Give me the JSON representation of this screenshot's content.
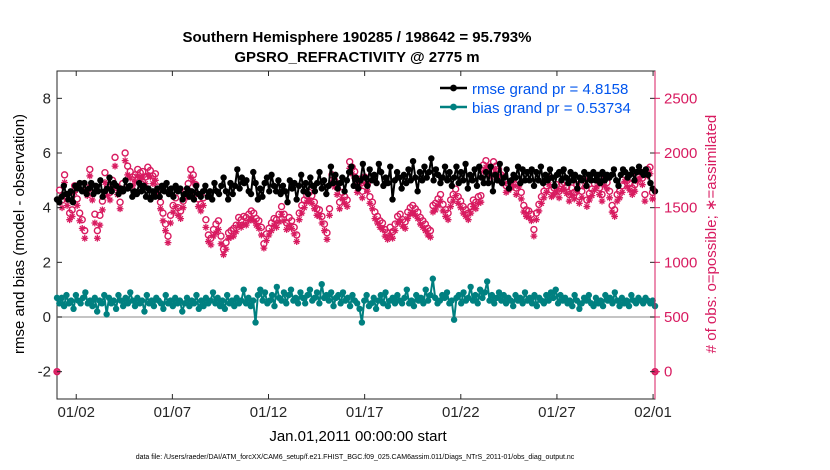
{
  "chart_data": {
    "type": "line",
    "title": "Southern Hemisphere 190285 / 198642 = 95.793%",
    "subtitle": "GPSRO_REFRACTIVITY @ 2775 m",
    "xlabel": "Jan.01,2011 00:00:00 start",
    "ylabel_left": "rmse and bias (model - observation)",
    "ylabel_right": "# of obs: o=possible; ∗=assimilated",
    "footer": "data file: /Users/raeder/DAI/ATM_forcXX/CAM6_setup/f.e21.FHIST_BGC.f09_025.CAM6assim.011/Diags_NTrS_2011-01/obs_diag_output.nc",
    "x_ticks": [
      "01/02",
      "01/07",
      "01/12",
      "01/17",
      "01/22",
      "01/27",
      "02/01"
    ],
    "x_tick_days": [
      1,
      6,
      11,
      16,
      21,
      26,
      31
    ],
    "xlim_days": [
      0,
      31.1
    ],
    "ylim_left": [
      -3,
      9
    ],
    "y_ticks_left": [
      "-2",
      "0",
      "2",
      "4",
      "6",
      "8"
    ],
    "y_tick_values_left": [
      -2,
      0,
      2,
      4,
      6,
      8
    ],
    "ylim_right": [
      -250,
      2750
    ],
    "y_ticks_right": [
      "0",
      "500",
      "1000",
      "1500",
      "2000",
      "2500"
    ],
    "y_tick_values_right": [
      0,
      500,
      1000,
      1500,
      2000,
      2500
    ],
    "grid": false,
    "legend_position": "top-right",
    "colors": {
      "rmse": "#000000",
      "bias": "#008080",
      "obs": "#d81b60",
      "legend_text": "#0055ee",
      "zero_line": "#b0b0b0"
    },
    "series": [
      {
        "name": "rmse grand pr = 4.8158",
        "legend_label": "rmse grand pr = 4.8158",
        "axis": "left",
        "values": [
          4.3,
          4.2,
          4.4,
          4.8,
          4.5,
          4.3,
          4.6,
          4.2,
          4.8,
          4.7,
          4.9,
          4.6,
          4.9,
          4.5,
          4.7,
          4.9,
          4.5,
          4.8,
          4.6,
          5.0,
          4.4,
          4.6,
          4.7,
          5.1,
          4.6,
          4.9,
          4.8,
          4.5,
          4.7,
          4.6,
          5.0,
          4.7,
          4.8,
          4.4,
          4.6,
          4.5,
          4.9,
          4.6,
          4.8,
          4.4,
          4.7,
          4.3,
          4.6,
          4.4,
          4.7,
          4.4,
          4.8,
          4.6,
          4.9,
          4.5,
          4.7,
          4.4,
          4.8,
          4.6,
          4.7,
          4.3,
          4.5,
          4.7,
          4.4,
          4.6,
          4.3,
          4.8,
          4.5,
          4.4,
          4.6,
          4.8,
          4.4,
          4.6,
          4.3,
          4.9,
          4.6,
          4.5,
          4.8,
          5.1,
          4.6,
          4.3,
          4.9,
          4.5,
          4.8,
          5.4,
          4.7,
          5.1,
          4.9,
          5.0,
          4.6,
          4.5,
          5.3,
          4.9,
          4.3,
          4.7,
          4.4,
          4.9,
          5.1,
          4.6,
          5.2,
          4.8,
          4.6,
          5.0,
          4.5,
          4.8,
          4.6,
          4.2,
          5.0,
          4.7,
          4.9,
          4.3,
          4.8,
          5.2,
          4.6,
          4.9,
          4.5,
          5.1,
          4.8,
          4.6,
          4.9,
          5.3,
          4.7,
          5.0,
          4.5,
          4.8,
          5.5,
          4.9,
          5.2,
          4.7,
          4.9,
          5.1,
          4.6,
          5.0,
          5.3,
          5.5,
          4.8,
          5.1,
          4.7,
          5.0,
          5.6,
          5.1,
          4.8,
          5.4,
          5.0,
          5.2,
          4.9,
          5.6,
          5.3,
          4.8,
          5.1,
          4.9,
          5.5,
          4.3,
          5.0,
          5.3,
          5.1,
          4.7,
          5.2,
          4.9,
          5.4,
          5.0,
          5.7,
          5.1,
          4.6,
          5.3,
          5.0,
          5.5,
          5.1,
          5.3,
          5.8,
          5.0,
          5.4,
          5.2,
          4.9,
          5.1,
          5.5,
          5.0,
          5.3,
          4.8,
          5.1,
          5.5,
          4.9,
          5.3,
          5.0,
          5.6,
          4.7,
          5.2,
          5.0,
          5.4,
          4.8,
          5.5,
          5.1,
          4.9,
          5.3,
          4.9,
          5.5,
          4.6,
          5.2,
          5.0,
          5.6,
          4.9,
          5.1,
          5.4,
          4.7,
          5.0,
          5.2,
          5.1,
          5.5,
          4.9,
          5.4,
          5.0,
          5.3,
          5.0,
          5.4,
          4.8,
          5.3,
          5.0,
          5.5,
          4.9,
          5.2,
          5.0,
          5.4,
          5.1,
          4.8,
          5.2,
          5.3,
          5.0,
          5.4,
          5.1,
          4.9,
          5.3,
          5.0,
          5.2,
          4.7,
          5.1,
          5.0,
          5.3,
          4.8,
          5.2,
          5.0,
          5.3,
          5.0,
          5.2,
          4.9,
          5.3,
          5.0,
          5.2,
          5.1,
          5.2,
          5.4,
          5.0,
          4.8,
          5.2,
          5.4,
          5.3,
          5.1,
          5.2,
          5.4,
          5.0,
          5.3,
          5.5,
          5.3,
          5.2,
          5.4,
          5.2,
          4.9,
          4.7,
          4.6
        ]
      },
      {
        "name": "bias grand pr = 0.53734",
        "legend_label": "bias grand pr = 0.53734",
        "axis": "left",
        "values": [
          0.7,
          0.5,
          0.7,
          0.4,
          0.8,
          0.5,
          0.6,
          0.3,
          0.8,
          0.6,
          0.5,
          0.7,
          0.9,
          0.5,
          0.6,
          0.4,
          0.7,
          0.2,
          0.6,
          0.5,
          0.8,
          0.1,
          0.7,
          0.5,
          0.6,
          0.3,
          0.8,
          0.6,
          0.4,
          0.7,
          0.5,
          0.9,
          0.6,
          0.4,
          0.7,
          0.5,
          0.6,
          0.2,
          0.8,
          0.5,
          0.6,
          0.4,
          0.7,
          0.6,
          0.5,
          0.3,
          0.8,
          0.5,
          0.6,
          0.4,
          0.7,
          0.5,
          0.6,
          0.2,
          0.5,
          0.7,
          0.4,
          0.6,
          0.5,
          0.8,
          0.3,
          0.6,
          0.4,
          0.7,
          0.5,
          0.6,
          0.9,
          0.5,
          0.7,
          0.4,
          0.6,
          0.3,
          0.8,
          0.5,
          0.6,
          0.4,
          0.7,
          0.5,
          0.6,
          1.0,
          0.5,
          0.7,
          0.4,
          0.6,
          -0.2,
          0.8,
          1.0,
          0.6,
          0.9,
          0.5,
          0.6,
          0.8,
          0.4,
          1.1,
          0.7,
          0.6,
          0.9,
          0.5,
          0.8,
          1.0,
          0.6,
          0.7,
          0.5,
          0.9,
          0.7,
          0.5,
          0.8,
          1.0,
          0.6,
          0.7,
          0.9,
          0.5,
          1.2,
          0.7,
          0.8,
          0.6,
          0.9,
          0.4,
          0.7,
          0.8,
          0.5,
          0.9,
          0.6,
          0.7,
          0.4,
          0.8,
          0.6,
          0.5,
          0.3,
          -0.2,
          0.6,
          0.8,
          0.4,
          0.5,
          0.7,
          0.3,
          0.6,
          0.8,
          0.5,
          0.9,
          0.4,
          0.6,
          0.7,
          0.5,
          0.8,
          0.6,
          0.5,
          0.7,
          1.0,
          0.5,
          0.6,
          0.4,
          0.8,
          0.6,
          0.7,
          0.5,
          1.0,
          0.6,
          0.8,
          1.4,
          0.7,
          0.5,
          0.6,
          0.8,
          0.7,
          0.9,
          0.5,
          0.6,
          -0.1,
          0.7,
          0.8,
          0.5,
          0.9,
          0.6,
          0.7,
          1.1,
          0.6,
          0.8,
          0.5,
          1.0,
          0.7,
          0.9,
          1.3,
          0.6,
          0.8,
          0.5,
          0.7,
          0.9,
          0.6,
          0.8,
          0.5,
          0.7,
          0.6,
          0.4,
          0.8,
          0.6,
          0.7,
          0.5,
          0.9,
          0.6,
          0.7,
          0.5,
          0.8,
          0.4,
          0.7,
          0.6,
          0.5,
          0.8,
          0.6,
          0.9,
          0.7,
          1.0,
          0.5,
          0.8,
          0.6,
          0.7,
          0.5,
          0.6,
          0.4,
          0.8,
          0.6,
          0.3,
          0.5,
          0.7,
          0.6,
          0.8,
          0.5,
          0.4,
          0.7,
          0.5,
          0.6,
          0.4,
          0.8,
          0.6,
          0.7,
          0.5,
          0.9,
          0.6,
          0.4,
          0.7,
          0.5,
          0.6,
          0.4,
          0.8,
          0.6,
          0.5,
          0.7,
          0.6,
          0.5,
          0.7,
          0.6,
          0.5,
          0.6,
          0.4
        ]
      },
      {
        "name": "possible",
        "axis": "right",
        "marker": "o",
        "values": [
          -1,
          1660,
          1570,
          1800,
          1580,
          1450,
          1480,
          1700,
          1580,
          1450,
          1390,
          1290,
          1680,
          1850,
          1630,
          1440,
          1290,
          1430,
          1560,
          1820,
          1690,
          1640,
          1750,
          1960,
          1680,
          1550,
          1720,
          2000,
          1880,
          1830,
          1780,
          1800,
          1850,
          1820,
          1830,
          1780,
          1870,
          1840,
          1790,
          1810,
          1690,
          1550,
          1450,
          1350,
          1240,
          1430,
          1520,
          1590,
          1500,
          1470,
          1560,
          1650,
          1720,
          1850,
          1800,
          1710,
          1580,
          1530,
          1590,
          1390,
          1250,
          1220,
          1300,
          1350,
          1380,
          1240,
          1120,
          1180,
          1270,
          1290,
          1310,
          1340,
          1410,
          1390,
          1420,
          1410,
          1440,
          1470,
          1450,
          1400,
          1380,
          1320,
          1170,
          1260,
          1310,
          1360,
          1400,
          1390,
          1440,
          1510,
          1440,
          1360,
          1410,
          1380,
          1320,
          1250,
          1450,
          1520,
          1570,
          1610,
          1640,
          1610,
          1550,
          1490,
          1480,
          1420,
          1350,
          1270,
          1490,
          1800,
          1750,
          1690,
          1550,
          1640,
          1600,
          1570,
          1920,
          1870,
          1830,
          1700,
          1760,
          1650,
          1780,
          1710,
          1600,
          1550,
          1460,
          1420,
          1380,
          1360,
          1300,
          1270,
          1320,
          1280,
          1350,
          1420,
          1440,
          1390,
          1370,
          1460,
          1500,
          1520,
          1490,
          1460,
          1410,
          1380,
          1350,
          1310,
          1290,
          1520,
          1540,
          1580,
          1620,
          1530,
          1480,
          1450,
          1570,
          1620,
          1670,
          1600,
          1560,
          1510,
          1480,
          1450,
          1510,
          1570,
          1550,
          1600,
          1610,
          1890,
          1930,
          1870,
          1840,
          1920,
          1880,
          1850,
          1800,
          1780,
          1700,
          1720,
          1740,
          1760,
          1680,
          1750,
          1640,
          1520,
          1480,
          1470,
          1440,
          1300,
          1450,
          1530,
          1600,
          1650,
          1700,
          1770,
          1660,
          1680,
          1710,
          1650,
          1720,
          1730,
          1690,
          1620,
          1680,
          1640,
          1710,
          1600,
          1650,
          1750,
          1570,
          1630,
          1670,
          1720,
          1750,
          1680,
          1620,
          1760,
          1730,
          1650,
          1520,
          1480,
          1620,
          1650,
          1700,
          1800,
          1750,
          1720,
          1680,
          1710,
          1800,
          1830,
          1770,
          1620,
          1850,
          1870,
          1640,
          -1
        ]
      },
      {
        "name": "assimilated",
        "axis": "right",
        "marker": "*",
        "values": [
          -1,
          1580,
          1500,
          1730,
          1520,
          1390,
          1420,
          1640,
          1520,
          1380,
          1310,
          1220,
          1610,
          1790,
          1570,
          1360,
          1220,
          1340,
          1480,
          1730,
          1610,
          1570,
          1690,
          1880,
          1620,
          1490,
          1650,
          1930,
          1800,
          1770,
          1700,
          1740,
          1790,
          1760,
          1780,
          1720,
          1800,
          1780,
          1720,
          1750,
          1630,
          1490,
          1380,
          1290,
          1180,
          1360,
          1460,
          1510,
          1430,
          1400,
          1500,
          1590,
          1660,
          1780,
          1740,
          1640,
          1510,
          1470,
          1520,
          1320,
          1190,
          1160,
          1240,
          1270,
          1300,
          1170,
          1070,
          1120,
          1220,
          1230,
          1240,
          1280,
          1340,
          1320,
          1350,
          1340,
          1380,
          1400,
          1380,
          1340,
          1310,
          1250,
          1130,
          1200,
          1250,
          1290,
          1340,
          1320,
          1370,
          1440,
          1380,
          1300,
          1340,
          1310,
          1260,
          1190,
          1390,
          1450,
          1500,
          1550,
          1570,
          1540,
          1490,
          1430,
          1420,
          1360,
          1290,
          1210,
          1430,
          1730,
          1690,
          1620,
          1490,
          1580,
          1540,
          1510,
          1860,
          1810,
          1770,
          1640,
          1700,
          1590,
          1720,
          1650,
          1540,
          1490,
          1400,
          1360,
          1320,
          1300,
          1240,
          1210,
          1250,
          1220,
          1290,
          1360,
          1380,
          1330,
          1310,
          1400,
          1440,
          1460,
          1430,
          1400,
          1350,
          1320,
          1290,
          1250,
          1230,
          1460,
          1480,
          1520,
          1560,
          1470,
          1420,
          1390,
          1510,
          1560,
          1610,
          1540,
          1500,
          1450,
          1420,
          1390,
          1450,
          1510,
          1490,
          1540,
          1550,
          1830,
          1870,
          1810,
          1780,
          1860,
          1820,
          1790,
          1740,
          1720,
          1640,
          1660,
          1680,
          1700,
          1620,
          1690,
          1580,
          1460,
          1420,
          1410,
          1380,
          1240,
          1390,
          1470,
          1540,
          1590,
          1640,
          1710,
          1600,
          1620,
          1650,
          1590,
          1660,
          1670,
          1630,
          1560,
          1620,
          1580,
          1650,
          1540,
          1590,
          1690,
          1510,
          1570,
          1610,
          1660,
          1690,
          1620,
          1560,
          1700,
          1670,
          1590,
          1460,
          1420,
          1560,
          1590,
          1640,
          1740,
          1690,
          1660,
          1620,
          1650,
          1740,
          1770,
          1710,
          1560,
          1790,
          1810,
          1580,
          -1
        ]
      }
    ]
  }
}
